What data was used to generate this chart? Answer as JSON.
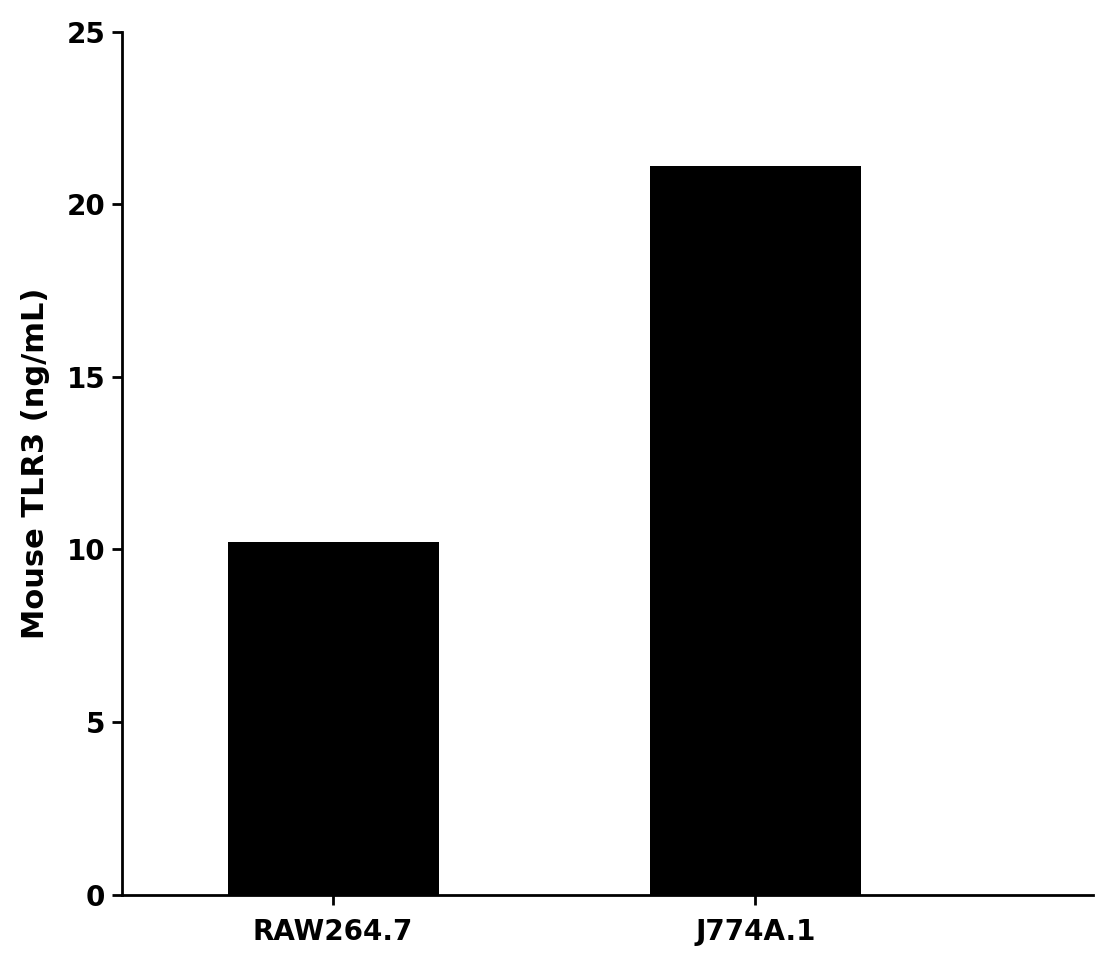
{
  "categories": [
    "RAW264.7",
    "J774A.1"
  ],
  "values": [
    10.21,
    21.1
  ],
  "bar_color": "#000000",
  "bar_width": 0.5,
  "ylabel": "Mouse TLR3 (ng/mL)",
  "ylim": [
    0,
    25
  ],
  "yticks": [
    0,
    5,
    10,
    15,
    20,
    25
  ],
  "background_color": "#ffffff",
  "ylabel_fontsize": 22,
  "tick_fontsize": 20,
  "xlabel_fontsize": 20,
  "xlim": [
    -0.5,
    1.8
  ]
}
